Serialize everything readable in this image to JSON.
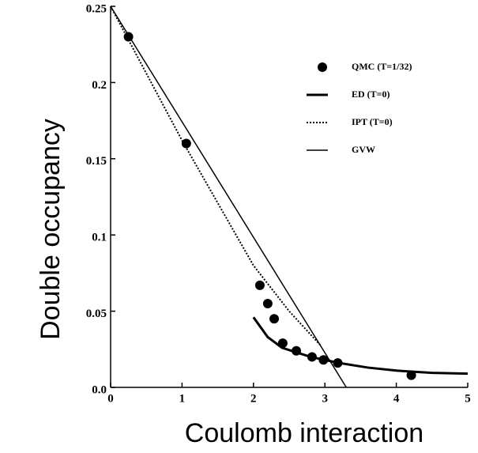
{
  "chart_data": {
    "type": "line",
    "xlabel": "Coulomb interaction",
    "ylabel": "Double occupancy",
    "xlim": [
      0,
      5
    ],
    "xticks": [
      0,
      1,
      2,
      3,
      4,
      5
    ],
    "ylim": [
      0,
      0.25
    ],
    "yticks": [
      {
        "value": 0,
        "label": "0.0"
      },
      0.05,
      0.1,
      0.15,
      0.2,
      0.25
    ],
    "series": [
      {
        "name": "QMC  (T=1/32)",
        "color": "#000000",
        "marker": "circle",
        "x": [
          0.25,
          1.06,
          2.09,
          2.2,
          2.29,
          2.41,
          2.6,
          2.82,
          2.98,
          3.18,
          4.21
        ],
        "values": [
          0.23,
          0.16,
          0.067,
          0.055,
          0.045,
          0.029,
          0.024,
          0.02,
          0.018,
          0.016,
          0.008
        ]
      },
      {
        "name": "ED (T=0)",
        "color": "#000000",
        "width": 3,
        "x": [
          2.0,
          2.2,
          2.4,
          2.8,
          3.2,
          3.6,
          4.0,
          4.5,
          5.0
        ],
        "values": [
          0.046,
          0.033,
          0.026,
          0.02,
          0.016,
          0.013,
          0.011,
          0.0095,
          0.009
        ]
      },
      {
        "name": "IPT (T=0)",
        "color": "#000000",
        "width": 2,
        "dash": "2,2",
        "x": [
          0,
          1,
          2,
          2.5,
          2.95
        ],
        "values": [
          0.25,
          0.162,
          0.08,
          0.05,
          0.027
        ]
      },
      {
        "name": "GVW",
        "color": "#000000",
        "width": 1.5,
        "x": [
          0,
          3.3
        ],
        "values": [
          0.25,
          0
        ]
      }
    ]
  }
}
